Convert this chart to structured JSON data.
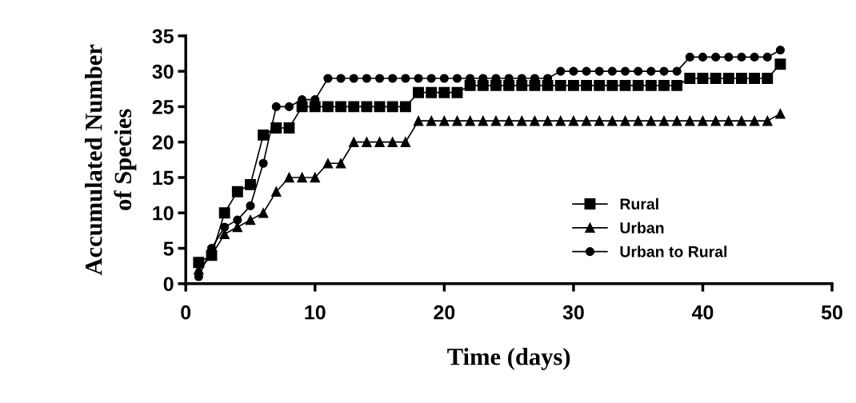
{
  "chart_data": {
    "type": "line",
    "xlabel": "Time (days)",
    "ylabel": "Accumulated Number\nof Species",
    "x": [
      1,
      2,
      3,
      4,
      5,
      6,
      7,
      8,
      9,
      10,
      11,
      12,
      13,
      14,
      15,
      16,
      17,
      18,
      19,
      20,
      21,
      22,
      23,
      24,
      25,
      26,
      27,
      28,
      29,
      30,
      31,
      32,
      33,
      34,
      35,
      36,
      37,
      38,
      39,
      40,
      41,
      42,
      43,
      44,
      45,
      46
    ],
    "series": [
      {
        "name": "Rural",
        "color": "#000000",
        "marker": "square",
        "values": [
          3,
          4,
          10,
          13,
          14,
          21,
          22,
          22,
          25,
          25,
          25,
          25,
          25,
          25,
          25,
          25,
          25,
          27,
          27,
          27,
          27,
          28,
          28,
          28,
          28,
          28,
          28,
          28,
          28,
          28,
          28,
          28,
          28,
          28,
          28,
          28,
          28,
          28,
          29,
          29,
          29,
          29,
          29,
          29,
          29,
          31
        ]
      },
      {
        "name": "Urban",
        "color": "#000000",
        "marker": "triangle",
        "values": [
          2,
          4,
          7,
          8,
          9,
          10,
          13,
          15,
          15,
          15,
          17,
          17,
          20,
          20,
          20,
          20,
          20,
          23,
          23,
          23,
          23,
          23,
          23,
          23,
          23,
          23,
          23,
          23,
          23,
          23,
          23,
          23,
          23,
          23,
          23,
          23,
          23,
          23,
          23,
          23,
          23,
          23,
          23,
          23,
          23,
          24
        ]
      },
      {
        "name": "Urban to Rural",
        "color": "#000000",
        "marker": "circle",
        "values": [
          1,
          5,
          8,
          9,
          11,
          17,
          25,
          25,
          26,
          26,
          29,
          29,
          29,
          29,
          29,
          29,
          29,
          29,
          29,
          29,
          29,
          29,
          29,
          29,
          29,
          29,
          29,
          29,
          30,
          30,
          30,
          30,
          30,
          30,
          30,
          30,
          30,
          30,
          32,
          32,
          32,
          32,
          32,
          32,
          32,
          33
        ]
      }
    ],
    "xlim": [
      0,
      50
    ],
    "xticks": [
      0,
      10,
      20,
      30,
      40,
      50
    ],
    "ylim": [
      0,
      35
    ],
    "yticks": [
      0,
      5,
      10,
      15,
      20,
      25,
      30,
      35
    ],
    "grid": false,
    "legend": "right",
    "line_style": "solid"
  }
}
